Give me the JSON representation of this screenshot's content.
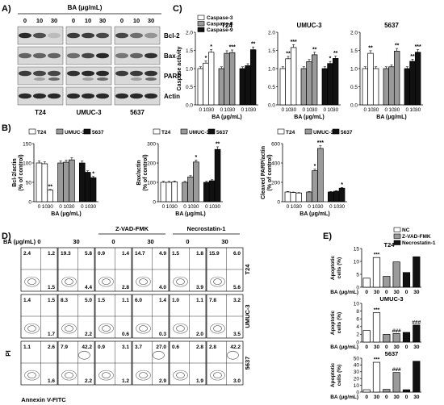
{
  "panel_labels": {
    "a": "A)",
    "b": "B)",
    "c": "C)",
    "d": "D)",
    "e": "E)"
  },
  "panel_a": {
    "treatment_label": "BA (μg/mL)",
    "doses": [
      "0",
      "10",
      "30"
    ],
    "cell_lines": [
      "T24",
      "UMUC-3",
      "5637"
    ],
    "proteins": [
      "Bcl-2",
      "Bax",
      "PARP",
      "Actin"
    ]
  },
  "panel_d": {
    "treatment_label": "BA (μg/mL)",
    "doses": [
      "0",
      "30",
      "0",
      "30",
      "0",
      "30"
    ],
    "group_headers": [
      "Z-VAD-FMK",
      "Necrostatin-1"
    ],
    "row_labels": [
      "T24",
      "UMUC-3",
      "5637"
    ],
    "y_axis_label": "PI",
    "x_axis_label": "Annexin V-FITC",
    "quadrants": [
      [
        [
          "2.4",
          "1.2",
          "1.5"
        ],
        [
          "19.3",
          "5.8",
          "4.4"
        ],
        [
          "0.9",
          "1.4",
          "2.8"
        ],
        [
          "14.7",
          "4.9",
          "4.0"
        ],
        [
          "1.5",
          "1.8",
          "3.9"
        ],
        [
          "15.9",
          "6.0",
          "5.6"
        ]
      ],
      [
        [
          "1.4",
          "1.5",
          "1.7"
        ],
        [
          "8.3",
          "5.0",
          "2.2"
        ],
        [
          "1.5",
          "1.1",
          "0.6"
        ],
        [
          "6.0",
          "1.4",
          "0.3"
        ],
        [
          "1.0",
          "1.1",
          "2.0"
        ],
        [
          "7.8",
          "3.2",
          "3.5"
        ]
      ],
      [
        [
          "1.1",
          "2.6",
          "1.6"
        ],
        [
          "7.9",
          "42.2",
          "2.2"
        ],
        [
          "0.9",
          "3.1",
          "1.2"
        ],
        [
          "3.7",
          "27.0",
          "2.9"
        ],
        [
          "0.6",
          "2.8",
          "1.9"
        ],
        [
          "2.8",
          "42.2",
          "3.0"
        ]
      ]
    ]
  },
  "chart_data": [
    {
      "id": "C-T24",
      "type": "bar",
      "title": "T24",
      "ylabel": "Caspase activity",
      "xlabel": "BA (μg/mL)",
      "categories": [
        "0",
        "10",
        "30"
      ],
      "ylim": [
        0,
        2.0
      ],
      "yticks": [
        "0.0",
        "0.5",
        "1.0",
        "1.5",
        "2.0"
      ],
      "series": [
        {
          "name": "Caspase-3",
          "values": [
            1.0,
            1.15,
            1.45
          ],
          "sig": [
            "",
            "*",
            "*"
          ]
        },
        {
          "name": "Caspase-8",
          "values": [
            1.0,
            1.42,
            1.44
          ],
          "sig": [
            "",
            "",
            "***"
          ]
        },
        {
          "name": "Caspase-9",
          "values": [
            1.0,
            1.08,
            1.52
          ],
          "sig": [
            "",
            "",
            "**"
          ]
        }
      ],
      "legend": "top-left"
    },
    {
      "id": "C-UMUC3",
      "type": "bar",
      "title": "UMUC-3",
      "xlabel": "BA (μg/mL)",
      "categories": [
        "0",
        "10",
        "30"
      ],
      "ylim": [
        0,
        2.0
      ],
      "yticks": [
        "0.0",
        "0.5",
        "1.0",
        "1.5",
        "2.0"
      ],
      "series": [
        {
          "name": "Caspase-3",
          "values": [
            1.0,
            1.27,
            1.58
          ],
          "sig": [
            "",
            "**",
            "***"
          ]
        },
        {
          "name": "Caspase-8",
          "values": [
            1.0,
            1.19,
            1.38
          ],
          "sig": [
            "",
            "",
            "**"
          ]
        },
        {
          "name": "Caspase-9",
          "values": [
            1.0,
            1.14,
            1.28
          ],
          "sig": [
            "",
            "*",
            "**"
          ]
        }
      ]
    },
    {
      "id": "C-5637",
      "type": "bar",
      "title": "5637",
      "xlabel": "BA (μg/mL)",
      "categories": [
        "0",
        "10",
        "30"
      ],
      "ylim": [
        0,
        2.0
      ],
      "yticks": [
        "0.0",
        "0.5",
        "1.0",
        "1.5",
        "2.0"
      ],
      "series": [
        {
          "name": "Caspase-3",
          "values": [
            1.0,
            1.42,
            1.0
          ],
          "sig": [
            "",
            "**",
            ""
          ]
        },
        {
          "name": "Caspase-8",
          "values": [
            1.0,
            1.05,
            1.48
          ],
          "sig": [
            "",
            "",
            "**"
          ]
        },
        {
          "name": "Caspase-9",
          "values": [
            1.0,
            1.2,
            1.45
          ],
          "sig": [
            "",
            "**",
            "***"
          ]
        }
      ]
    },
    {
      "id": "B-Bcl2",
      "type": "bar",
      "ylabel": [
        "Bcl-2/actin",
        "(% of control)"
      ],
      "xlabel": "BA (μg/mL)",
      "categories": [
        "0",
        "10",
        "30"
      ],
      "ylim": [
        0,
        150
      ],
      "yticks": [
        "0",
        "50",
        "100",
        "150"
      ],
      "series": [
        {
          "name": "T24",
          "values": [
            100,
            98,
            30
          ],
          "sig": [
            "",
            "",
            "**"
          ]
        },
        {
          "name": "UMUC-3",
          "values": [
            100,
            102,
            108
          ],
          "sig": [
            "",
            "",
            ""
          ]
        },
        {
          "name": "5637",
          "values": [
            100,
            76,
            62
          ],
          "sig": [
            "",
            "",
            "*"
          ]
        }
      ],
      "legend": "top"
    },
    {
      "id": "B-Bax",
      "type": "bar",
      "ylabel": [
        "Bax/actin",
        "(% of control)"
      ],
      "xlabel": "BA (μg/mL)",
      "categories": [
        "0",
        "10",
        "30"
      ],
      "ylim": [
        0,
        300
      ],
      "yticks": [
        "0",
        "100",
        "200",
        "300"
      ],
      "series": [
        {
          "name": "T24",
          "values": [
            100,
            100,
            102
          ],
          "sig": [
            "",
            "",
            ""
          ]
        },
        {
          "name": "UMUC-3",
          "values": [
            100,
            128,
            205
          ],
          "sig": [
            "",
            "",
            "*"
          ]
        },
        {
          "name": "5637",
          "values": [
            100,
            108,
            270
          ],
          "sig": [
            "",
            "",
            "**"
          ]
        }
      ],
      "legend": "top"
    },
    {
      "id": "B-PARP",
      "type": "bar",
      "ylabel": [
        "Cleaved PARP/actin",
        "(% of control)"
      ],
      "xlabel": "BA (μg/mL)",
      "categories": [
        "0",
        "10",
        "30"
      ],
      "ylim": [
        0,
        600
      ],
      "yticks": [
        "0",
        "200",
        "400",
        "600"
      ],
      "series": [
        {
          "name": "T24",
          "values": [
            100,
            95,
            90
          ],
          "sig": [
            "",
            "",
            ""
          ]
        },
        {
          "name": "UMUC-3",
          "values": [
            100,
            320,
            550
          ],
          "sig": [
            "",
            "*",
            "***"
          ]
        },
        {
          "name": "5637",
          "values": [
            100,
            108,
            140
          ],
          "sig": [
            "",
            "",
            "*"
          ]
        }
      ],
      "legend": "top"
    },
    {
      "id": "E-T24",
      "type": "bar",
      "title": "T24",
      "ylabel": [
        "Apoptotic",
        "cells (%)"
      ],
      "xlabel": "BA (μg/mL)",
      "categories": [
        "0",
        "30",
        "0",
        "30",
        "0",
        "30"
      ],
      "ylim": [
        0,
        15
      ],
      "yticks": [
        "0",
        "5",
        "10",
        "15"
      ],
      "values": [
        3.5,
        11.5,
        4.2,
        9.8,
        5.7,
        11.8
      ],
      "groups": [
        "NC",
        "NC",
        "Z-VAD-FMK",
        "Z-VAD-FMK",
        "Necrostatin-1",
        "Necrostatin-1"
      ],
      "sig": [
        "",
        "***",
        "",
        "",
        "",
        ""
      ],
      "legend_entries": [
        "NC",
        "Z-VAD-FMK",
        "Necrostatin-1"
      ]
    },
    {
      "id": "E-UMUC3",
      "type": "bar",
      "title": "UMUC-3",
      "ylabel": [
        "Apoptotic",
        "cells (%)"
      ],
      "xlabel": "BA (μg/mL)",
      "categories": [
        "0",
        "30",
        "0",
        "30",
        "0",
        "30"
      ],
      "ylim": [
        0,
        10
      ],
      "yticks": [
        "0",
        "2",
        "4",
        "6",
        "8",
        "10"
      ],
      "values": [
        3.0,
        7.6,
        2.0,
        2.2,
        2.5,
        4.4
      ],
      "groups": [
        "NC",
        "NC",
        "Z-VAD-FMK",
        "Z-VAD-FMK",
        "Necrostatin-1",
        "Necrostatin-1"
      ],
      "sig": [
        "",
        "***",
        "",
        "###",
        "",
        "###"
      ]
    },
    {
      "id": "E-5637",
      "type": "bar",
      "title": "5637",
      "ylabel": [
        "Apoptotic",
        "cells (%)"
      ],
      "xlabel": "BA (μg/mL)",
      "categories": [
        "0",
        "30",
        "0",
        "30",
        "0",
        "30"
      ],
      "ylim": [
        0,
        50
      ],
      "yticks": [
        "0",
        "10",
        "20",
        "30",
        "40",
        "50"
      ],
      "values": [
        3.5,
        44.0,
        4.0,
        29.0,
        3.5,
        45.5
      ],
      "groups": [
        "NC",
        "NC",
        "Z-VAD-FMK",
        "Z-VAD-FMK",
        "Necrostatin-1",
        "Necrostatin-1"
      ],
      "sig": [
        "",
        "***",
        "",
        "###",
        "",
        ""
      ]
    }
  ]
}
